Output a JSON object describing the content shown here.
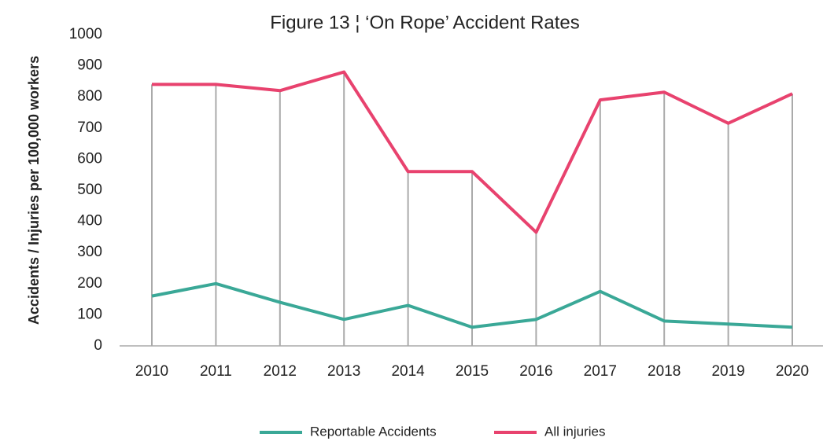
{
  "chart_data": {
    "type": "line",
    "title": "Figure 13 ¦ ‘On Rope’ Accident Rates",
    "y_label": "Accidents / Injuries per 100,000 workers",
    "categories": [
      "2010",
      "2011",
      "2012",
      "2013",
      "2014",
      "2015",
      "2016",
      "2017",
      "2018",
      "2019",
      "2020"
    ],
    "series": [
      {
        "name": "Reportable Accidents",
        "color": "#3aa897",
        "values": [
          160,
          200,
          140,
          85,
          130,
          60,
          85,
          175,
          80,
          70,
          60
        ]
      },
      {
        "name": "All injuries",
        "color": "#e8426e",
        "values": [
          840,
          840,
          820,
          880,
          560,
          560,
          365,
          790,
          815,
          715,
          810
        ]
      }
    ],
    "ylim": [
      0,
      1000
    ],
    "yticks": [
      0,
      100,
      200,
      300,
      400,
      500,
      600,
      700,
      800,
      900,
      1000
    ],
    "drop_lines": true,
    "legend": "bottom"
  }
}
